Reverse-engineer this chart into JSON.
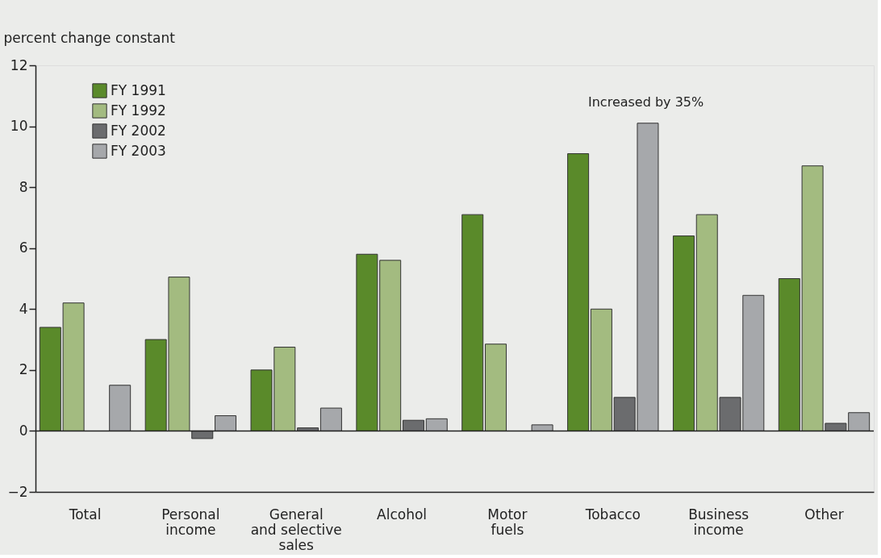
{
  "chart_data": {
    "type": "bar",
    "ylabel": "percent change constant",
    "categories": [
      "Total",
      "Personal\nincome",
      "General\nand selective\nsales",
      "Alcohol",
      "Motor\nfuels",
      "Tobacco",
      "Business\nincome",
      "Other"
    ],
    "series": [
      {
        "name": "FY 1991",
        "color": "#5a8a2a",
        "values": [
          3.4,
          3.0,
          2.0,
          5.8,
          7.1,
          9.1,
          6.4,
          5.0
        ]
      },
      {
        "name": "FY 1992",
        "color": "#a3bb80",
        "values": [
          4.2,
          5.05,
          2.75,
          5.6,
          2.85,
          4.0,
          7.1,
          8.7
        ]
      },
      {
        "name": "FY 2002",
        "color": "#6b6c6e",
        "values": [
          null,
          -0.25,
          0.1,
          0.35,
          null,
          1.1,
          1.1,
          0.25
        ]
      },
      {
        "name": "FY 2003",
        "color": "#a6a8ab",
        "values": [
          1.5,
          0.5,
          0.75,
          0.4,
          0.2,
          10.1,
          4.45,
          0.6
        ]
      }
    ],
    "ylim": [
      -2,
      12
    ],
    "yticks": [
      -2,
      0,
      2,
      4,
      6,
      8,
      10,
      12
    ],
    "ref_lines": [
      {
        "axis": "y",
        "value": 0
      }
    ],
    "annotations": [
      "Increased by 35%"
    ],
    "grid": false,
    "legend": "top left"
  }
}
